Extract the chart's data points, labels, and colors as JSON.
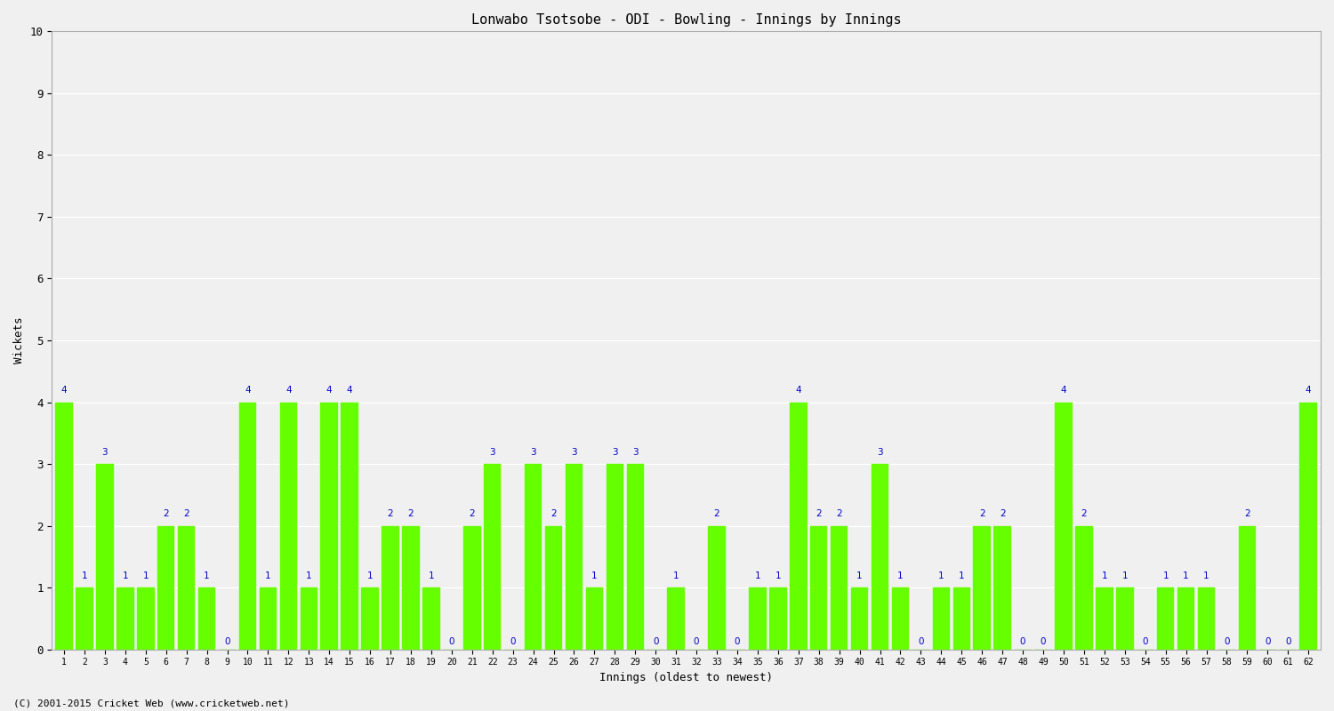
{
  "title": "Lonwabo Tsotsobe - ODI - Bowling - Innings by Innings",
  "xlabel": "Innings (oldest to newest)",
  "ylabel": "Wickets",
  "ylim": [
    0,
    10
  ],
  "yticks": [
    0,
    1,
    2,
    3,
    4,
    5,
    6,
    7,
    8,
    9,
    10
  ],
  "bar_color": "#66ff00",
  "label_color": "#0000cc",
  "background_color": "#f0f0f0",
  "plot_bg_color": "#f0f0f0",
  "grid_color": "#ffffff",
  "footer": "(C) 2001-2015 Cricket Web (www.cricketweb.net)",
  "categories": [
    "1",
    "2",
    "3",
    "4",
    "5",
    "6",
    "7",
    "8",
    "9",
    "10",
    "11",
    "12",
    "13",
    "14",
    "15",
    "16",
    "17",
    "18",
    "19",
    "20",
    "21",
    "22",
    "23",
    "24",
    "25",
    "26",
    "27",
    "28",
    "29",
    "30",
    "31",
    "32",
    "33",
    "34",
    "35",
    "36",
    "37",
    "38",
    "39",
    "40",
    "41",
    "42",
    "43",
    "44",
    "45",
    "46",
    "47",
    "48",
    "49",
    "50",
    "51",
    "52",
    "53",
    "54",
    "55",
    "56",
    "57",
    "58",
    "59",
    "60",
    "61",
    "62"
  ],
  "values": [
    4,
    1,
    3,
    1,
    1,
    2,
    2,
    1,
    0,
    4,
    1,
    4,
    1,
    4,
    4,
    1,
    2,
    2,
    1,
    0,
    2,
    3,
    0,
    3,
    2,
    3,
    1,
    3,
    3,
    0,
    1,
    0,
    2,
    0,
    1,
    1,
    4,
    2,
    2,
    1,
    3,
    1,
    0,
    1,
    1,
    2,
    2,
    0,
    0,
    4,
    2,
    1,
    1,
    0,
    1,
    1,
    1,
    0,
    2,
    0,
    0,
    4
  ]
}
